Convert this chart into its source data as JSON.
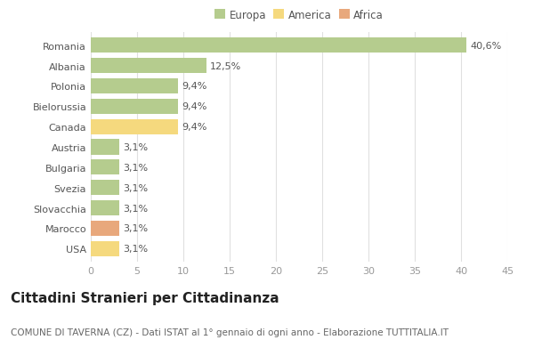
{
  "countries": [
    "Romania",
    "Albania",
    "Polonia",
    "Bielorussia",
    "Canada",
    "Austria",
    "Bulgaria",
    "Svezia",
    "Slovacchia",
    "Marocco",
    "USA"
  ],
  "values": [
    40.6,
    12.5,
    9.4,
    9.4,
    9.4,
    3.1,
    3.1,
    3.1,
    3.1,
    3.1,
    3.1
  ],
  "labels": [
    "40,6%",
    "12,5%",
    "9,4%",
    "9,4%",
    "9,4%",
    "3,1%",
    "3,1%",
    "3,1%",
    "3,1%",
    "3,1%",
    "3,1%"
  ],
  "categories": [
    "Europa",
    "Europa",
    "Europa",
    "Europa",
    "America",
    "Europa",
    "Europa",
    "Europa",
    "Europa",
    "Africa",
    "America"
  ],
  "color_map": {
    "Europa": "#b5cc8e",
    "America": "#f5d97e",
    "Africa": "#e8a87c"
  },
  "legend_labels": [
    "Europa",
    "America",
    "Africa"
  ],
  "legend_colors": [
    "#b5cc8e",
    "#f5d97e",
    "#e8a87c"
  ],
  "title": "Cittadini Stranieri per Cittadinanza",
  "subtitle": "COMUNE DI TAVERNA (CZ) - Dati ISTAT al 1° gennaio di ogni anno - Elaborazione TUTTITALIA.IT",
  "xlim": [
    0,
    45
  ],
  "xticks": [
    0,
    5,
    10,
    15,
    20,
    25,
    30,
    35,
    40,
    45
  ],
  "background_color": "#ffffff",
  "grid_color": "#e0e0e0",
  "bar_height": 0.75,
  "title_fontsize": 11,
  "subtitle_fontsize": 7.5,
  "label_fontsize": 8,
  "tick_fontsize": 8,
  "legend_fontsize": 8.5
}
